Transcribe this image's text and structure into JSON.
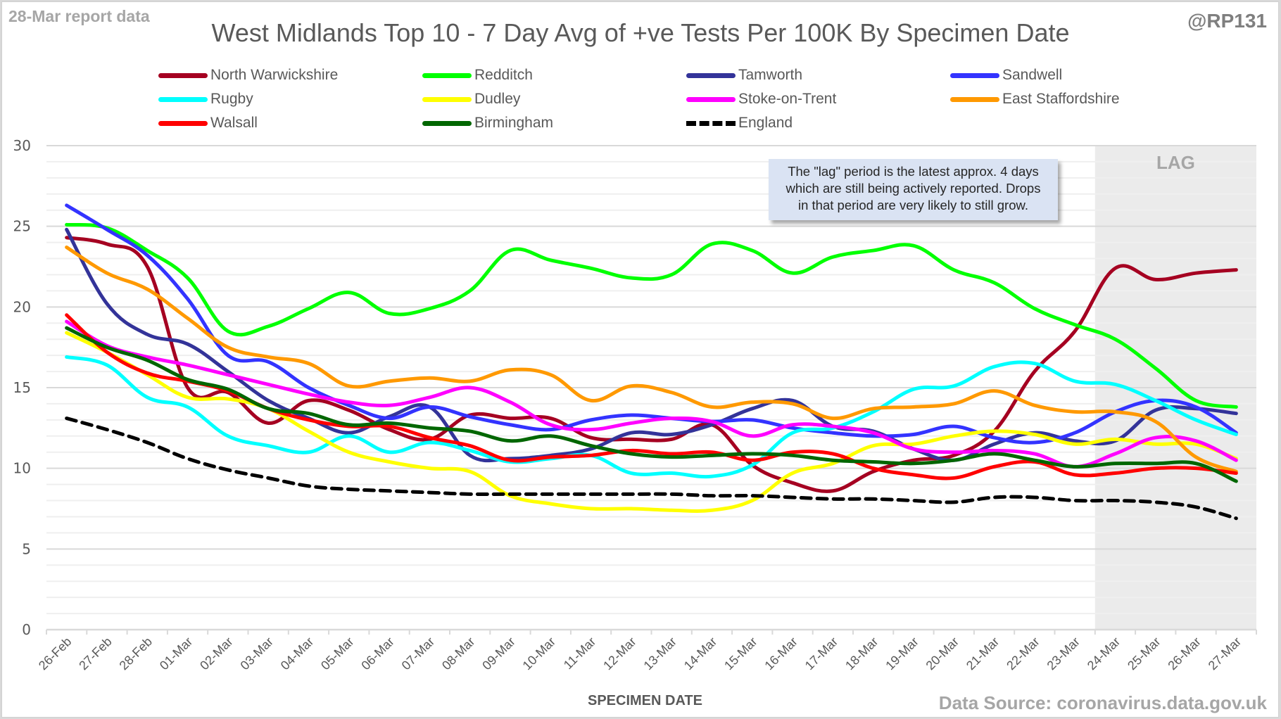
{
  "header": {
    "report_label": "28-Mar report data",
    "handle": "@RP131",
    "source": "Data Source: coronavirus.data.gov.uk"
  },
  "annotation": {
    "lag_label": "LAG",
    "note": "The \"lag\" period is the latest approx. 4 days which are still being actively reported.  Drops in that period are very likely to still grow.",
    "note_lines": [
      "The \"lag\" period is the latest approx. 4 days",
      "which are still being actively reported.  Drops",
      "in that period are very likely to still grow."
    ],
    "lag_start": "24-Mar",
    "lag_end": "27-Mar"
  },
  "chart_data": {
    "type": "line",
    "title": "West Midlands Top 10 - 7 Day Avg of +ve Tests Per 100K By Specimen Date",
    "xlabel": "SPECIMEN DATE",
    "ylabel": "",
    "ylim": [
      0,
      30
    ],
    "yticks": [
      0,
      5,
      10,
      15,
      20,
      25,
      30
    ],
    "grid": true,
    "legend_position": "top",
    "categories": [
      "26-Feb",
      "27-Feb",
      "28-Feb",
      "01-Mar",
      "02-Mar",
      "03-Mar",
      "04-Mar",
      "05-Mar",
      "06-Mar",
      "07-Mar",
      "08-Mar",
      "09-Mar",
      "10-Mar",
      "11-Mar",
      "12-Mar",
      "13-Mar",
      "14-Mar",
      "15-Mar",
      "16-Mar",
      "17-Mar",
      "18-Mar",
      "19-Mar",
      "20-Mar",
      "21-Mar",
      "22-Mar",
      "23-Mar",
      "24-Mar",
      "25-Mar",
      "26-Mar",
      "27-Mar"
    ],
    "series": [
      {
        "name": "North Warwickshire",
        "color": "#a50021",
        "dashed": false,
        "values": [
          24.3,
          23.9,
          22.5,
          15.0,
          14.7,
          12.8,
          14.2,
          13.6,
          12.4,
          11.8,
          13.3,
          13.1,
          13.1,
          11.9,
          11.8,
          11.8,
          12.7,
          10.2,
          9.1,
          8.6,
          9.8,
          10.5,
          10.8,
          12.3,
          16.0,
          18.5,
          22.4,
          21.7,
          22.1,
          22.3
        ]
      },
      {
        "name": "Redditch",
        "color": "#00ff00",
        "dashed": false,
        "values": [
          25.1,
          24.9,
          23.5,
          21.8,
          18.5,
          18.8,
          19.9,
          20.9,
          19.6,
          19.9,
          21.0,
          23.5,
          22.9,
          22.4,
          21.8,
          22.0,
          23.9,
          23.5,
          22.1,
          23.1,
          23.5,
          23.8,
          22.3,
          21.5,
          19.9,
          18.9,
          18.0,
          16.2,
          14.2,
          13.8
        ]
      },
      {
        "name": "Tamworth",
        "color": "#333399",
        "dashed": false,
        "values": [
          24.8,
          20.2,
          18.3,
          17.7,
          16.0,
          14.2,
          13.1,
          12.2,
          13.2,
          13.8,
          10.8,
          10.6,
          10.8,
          11.2,
          12.2,
          12.1,
          12.7,
          13.7,
          14.2,
          12.6,
          12.3,
          11.2,
          10.5,
          11.5,
          12.2,
          11.7,
          11.7,
          13.6,
          13.7,
          13.4
        ]
      },
      {
        "name": "Sandwell",
        "color": "#3333ff",
        "dashed": false,
        "values": [
          26.3,
          24.8,
          23.2,
          20.5,
          17.0,
          16.6,
          15.0,
          13.9,
          13.1,
          13.8,
          13.2,
          12.7,
          12.4,
          13.0,
          13.3,
          13.1,
          12.9,
          13.0,
          12.5,
          12.2,
          12.0,
          12.1,
          12.6,
          11.9,
          11.6,
          12.2,
          13.5,
          14.2,
          13.8,
          12.2
        ]
      },
      {
        "name": "Rugby",
        "color": "#00ffff",
        "dashed": false,
        "values": [
          16.9,
          16.4,
          14.4,
          13.8,
          12.0,
          11.4,
          11.0,
          12.0,
          11.0,
          11.6,
          11.1,
          10.4,
          10.6,
          10.8,
          9.7,
          9.7,
          9.5,
          10.2,
          12.2,
          12.5,
          13.5,
          14.9,
          15.1,
          16.3,
          16.5,
          15.4,
          15.2,
          14.2,
          13.0,
          12.1
        ]
      },
      {
        "name": "Dudley",
        "color": "#ffff00",
        "dashed": false,
        "values": [
          18.4,
          17.2,
          15.8,
          14.4,
          14.3,
          13.7,
          12.3,
          11.0,
          10.4,
          10.0,
          9.8,
          8.3,
          7.8,
          7.5,
          7.5,
          7.4,
          7.4,
          8.0,
          9.7,
          10.3,
          11.4,
          11.5,
          12.0,
          12.3,
          12.1,
          11.5,
          11.8,
          11.5,
          11.5,
          10.6
        ]
      },
      {
        "name": "Stoke-on-Trent",
        "color": "#ff00ff",
        "dashed": false,
        "values": [
          19.1,
          17.6,
          16.9,
          16.4,
          15.8,
          15.2,
          14.6,
          14.1,
          13.9,
          14.4,
          15.0,
          14.1,
          12.7,
          12.4,
          12.8,
          13.1,
          12.9,
          12.0,
          12.7,
          12.6,
          12.2,
          11.2,
          11.0,
          11.1,
          10.9,
          10.1,
          10.9,
          11.9,
          11.7,
          10.5
        ]
      },
      {
        "name": "East Staffordshire",
        "color": "#ff9900",
        "dashed": false,
        "values": [
          23.7,
          22.1,
          21.1,
          19.3,
          17.5,
          16.9,
          16.5,
          15.1,
          15.4,
          15.6,
          15.4,
          16.1,
          15.8,
          14.2,
          15.1,
          14.7,
          13.8,
          14.1,
          14.0,
          13.1,
          13.7,
          13.8,
          14.0,
          14.8,
          13.9,
          13.5,
          13.5,
          12.9,
          10.7,
          9.8
        ]
      },
      {
        "name": "Walsall",
        "color": "#ff0000",
        "dashed": false,
        "values": [
          19.5,
          17.2,
          15.9,
          15.4,
          14.8,
          13.7,
          13.0,
          12.6,
          12.6,
          11.9,
          11.4,
          10.5,
          10.7,
          10.8,
          11.1,
          10.9,
          11.0,
          10.5,
          11.0,
          10.9,
          10.0,
          9.6,
          9.4,
          10.1,
          10.4,
          9.6,
          9.7,
          10.0,
          10.0,
          9.7
        ]
      },
      {
        "name": "Birmingham",
        "color": "#006600",
        "dashed": false,
        "values": [
          18.7,
          17.5,
          16.7,
          15.5,
          14.9,
          13.7,
          13.4,
          12.7,
          12.8,
          12.5,
          12.3,
          11.7,
          12.0,
          11.4,
          10.9,
          10.7,
          10.8,
          10.9,
          10.8,
          10.5,
          10.4,
          10.3,
          10.5,
          10.9,
          10.5,
          10.1,
          10.3,
          10.3,
          10.3,
          9.2
        ]
      },
      {
        "name": "England",
        "color": "#000000",
        "dashed": true,
        "values": [
          13.1,
          12.4,
          11.6,
          10.6,
          9.9,
          9.4,
          8.9,
          8.7,
          8.6,
          8.5,
          8.4,
          8.4,
          8.4,
          8.4,
          8.4,
          8.4,
          8.3,
          8.3,
          8.2,
          8.1,
          8.1,
          8.0,
          7.9,
          8.2,
          8.2,
          8.0,
          8.0,
          7.9,
          7.6,
          6.9
        ]
      }
    ]
  }
}
